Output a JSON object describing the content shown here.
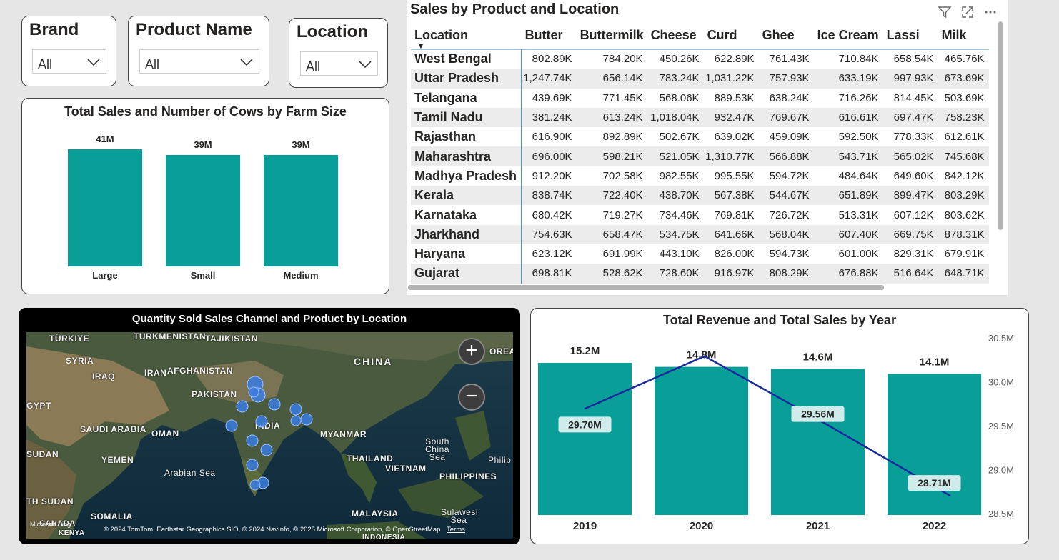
{
  "slicers": {
    "brand": {
      "title": "Brand",
      "value": "All"
    },
    "product": {
      "title": "Product Name",
      "value": "All"
    },
    "location": {
      "title": "Location",
      "value": "All"
    }
  },
  "matrix": {
    "title": "Sales by Product and Location",
    "columns": [
      "Location",
      "Butter",
      "Buttermilk",
      "Cheese",
      "Curd",
      "Ghee",
      "Ice Cream",
      "Lassi",
      "Milk"
    ],
    "rows": [
      [
        "West Bengal",
        "802.89K",
        "784.20K",
        "450.26K",
        "622.89K",
        "761.43K",
        "710.84K",
        "658.54K",
        "465.76K"
      ],
      [
        "Uttar Pradesh",
        "1,247.74K",
        "656.14K",
        "783.24K",
        "1,031.22K",
        "757.93K",
        "633.19K",
        "997.93K",
        "673.69K"
      ],
      [
        "Telangana",
        "439.69K",
        "771.45K",
        "568.06K",
        "889.53K",
        "638.24K",
        "716.26K",
        "814.45K",
        "503.69K"
      ],
      [
        "Tamil Nadu",
        "381.24K",
        "613.24K",
        "1,018.04K",
        "932.47K",
        "769.67K",
        "616.61K",
        "697.47K",
        "758.23K"
      ],
      [
        "Rajasthan",
        "616.90K",
        "892.89K",
        "502.67K",
        "639.02K",
        "459.09K",
        "592.50K",
        "778.33K",
        "612.61K"
      ],
      [
        "Maharashtra",
        "696.00K",
        "598.21K",
        "521.05K",
        "1,310.77K",
        "566.88K",
        "543.71K",
        "565.02K",
        "745.68K"
      ],
      [
        "Madhya Pradesh",
        "912.20K",
        "702.58K",
        "982.55K",
        "995.55K",
        "594.72K",
        "484.64K",
        "649.60K",
        "842.12K"
      ],
      [
        "Kerala",
        "838.74K",
        "722.40K",
        "438.70K",
        "567.38K",
        "544.67K",
        "651.89K",
        "899.47K",
        "803.29K"
      ],
      [
        "Karnataka",
        "680.42K",
        "719.27K",
        "734.46K",
        "769.81K",
        "726.72K",
        "513.31K",
        "607.12K",
        "803.62K"
      ],
      [
        "Jharkhand",
        "754.63K",
        "658.47K",
        "534.75K",
        "641.66K",
        "568.04K",
        "607.40K",
        "669.75K",
        "878.31K"
      ],
      [
        "Haryana",
        "623.12K",
        "691.99K",
        "443.10K",
        "826.00K",
        "594.73K",
        "601.00K",
        "829.31K",
        "679.91K"
      ],
      [
        "Gujarat",
        "698.81K",
        "528.62K",
        "728.60K",
        "916.97K",
        "808.29K",
        "676.88K",
        "516.64K",
        "648.71K"
      ]
    ],
    "icons": [
      "filter-icon",
      "focus-mode-icon",
      "more-options-icon"
    ]
  },
  "map": {
    "title": "Quantity Sold Sales Channel and Product by Location",
    "labels": [
      "TÜRKIYE",
      "TURKMENISTAN",
      "TAJIKISTAN",
      "SYRIA",
      "IRAQ",
      "IRAN",
      "AFGHANISTAN",
      "PAKISTAN",
      "CHINA",
      "OREA",
      "GYPT",
      "SAUDI ARABIA",
      "OMAN",
      "INDIA",
      "MYANMAR",
      "South China Sea",
      "SUDAN",
      "YEMEN",
      "Arabian Sea",
      "THAILAND",
      "VIETNAM",
      "Philip",
      "PHILIPPINES",
      "TH SUDAN",
      "SOMALIA",
      "MALAYSIA",
      "Sulawesi Sea",
      "KENYA",
      "CANADA",
      "INDONESIA"
    ],
    "attribution": "© 2024 TomTom, Earthstar Geographics SIO, © 2024 NavInfo, © 2025 Microsoft Corporation, © OpenStreetMap",
    "terms": "Terms",
    "bing": "Microsoft Bing",
    "zoom_in": "+",
    "zoom_out": "−"
  },
  "chart_data": [
    {
      "type": "bar",
      "title": "Total Sales and Number of Cows by Farm Size",
      "categories": [
        "Large",
        "Small",
        "Medium"
      ],
      "values": [
        41,
        39,
        39
      ],
      "value_labels": [
        "41M",
        "39M",
        "39M"
      ],
      "color": "#0a9e99"
    },
    {
      "type": "bar",
      "title": "Total Revenue and Total Sales by Year",
      "categories": [
        "2019",
        "2020",
        "2021",
        "2022"
      ],
      "series": [
        {
          "type": "bar",
          "values": [
            15.2,
            14.8,
            14.6,
            14.1
          ],
          "labels": [
            "15.2M",
            "14.8M",
            "14.6M",
            "14.1M"
          ],
          "color": "#0a9e99"
        },
        {
          "type": "line",
          "axis": "right",
          "values": [
            29.7,
            30.3,
            29.56,
            28.71
          ],
          "labels": [
            "29.70M",
            "",
            "29.56M",
            "28.71M"
          ],
          "color": "#1a2a9c"
        }
      ],
      "y2_ticks": [
        "30.5M",
        "30.0M",
        "29.5M",
        "29.0M",
        "28.5M"
      ],
      "y2lim": [
        28.5,
        30.5
      ]
    }
  ]
}
